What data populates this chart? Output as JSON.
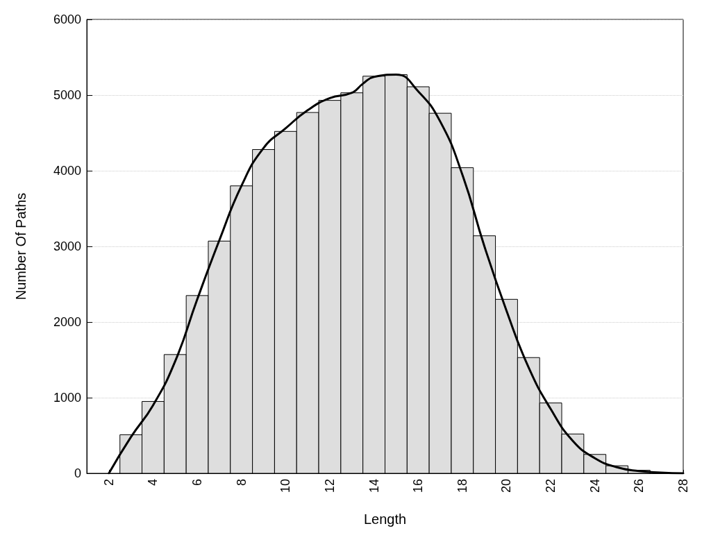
{
  "chart_data": {
    "type": "histogram",
    "xlabel": "Length",
    "ylabel": "Number Of Paths",
    "bins": [
      2.5,
      3.5,
      4.5,
      5.5,
      6.5,
      7.5,
      8.5,
      9.5,
      10.5,
      11.5,
      12.5,
      13.5,
      14.5,
      15.5,
      16.5,
      17.5,
      18.5,
      19.5,
      20.5,
      21.5,
      22.5,
      23.5,
      24.5,
      25.5,
      26.5
    ],
    "values": [
      510,
      950,
      1570,
      2350,
      3070,
      3800,
      4280,
      4520,
      4770,
      4930,
      5030,
      5250,
      5270,
      5110,
      4760,
      4040,
      3140,
      2300,
      1530,
      930,
      520,
      250,
      100,
      40
    ],
    "color": "#dedede",
    "series": [
      {
        "type": "line",
        "color": "#000000",
        "x": [
          2,
          3,
          4,
          5,
          6,
          7,
          8,
          9,
          10,
          11,
          12,
          13,
          13.5,
          14,
          15,
          16,
          17,
          18,
          19,
          20,
          21,
          22,
          23,
          24,
          25,
          26,
          27,
          28
        ],
        "values": [
          0,
          480,
          900,
          1480,
          2300,
          3080,
          3800,
          4300,
          4560,
          4800,
          4960,
          5030,
          5150,
          5240,
          5270,
          5050,
          4650,
          3950,
          3000,
          2150,
          1400,
          850,
          430,
          200,
          80,
          30,
          10,
          0
        ]
      }
    ],
    "xlim": [
      1,
      28
    ],
    "xticks": [
      2,
      4,
      6,
      8,
      10,
      12,
      14,
      16,
      18,
      20,
      22,
      24,
      26,
      28
    ],
    "ylim": [
      0,
      6000
    ],
    "yticks": [
      0,
      1000,
      2000,
      3000,
      4000,
      5000,
      6000
    ],
    "grid": "y",
    "marker": "none",
    "line_style": "solid"
  }
}
